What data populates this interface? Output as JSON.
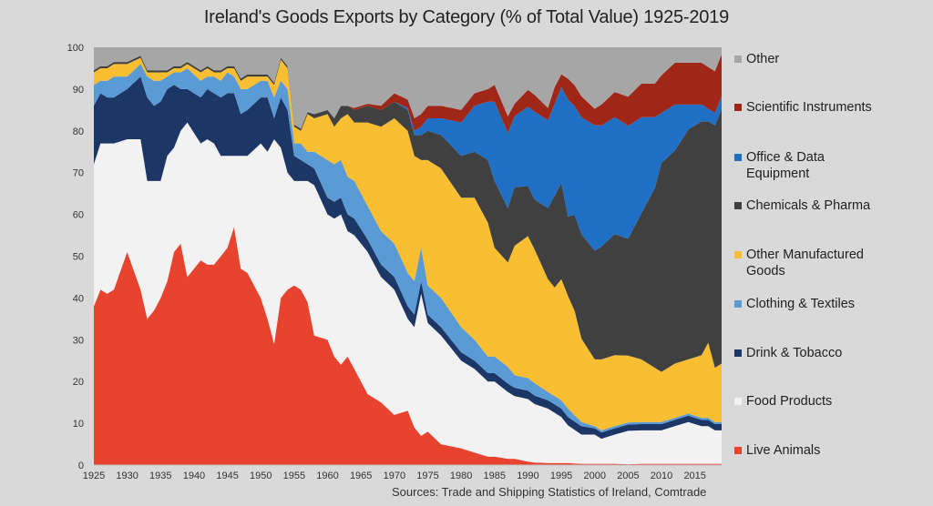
{
  "chart_data": {
    "type": "area",
    "stacked": true,
    "title": "Ireland's Goods Exports by Category (% of Total Value) 1925-2019",
    "xlabel": "",
    "ylabel": "",
    "ylim": [
      0,
      100
    ],
    "xlim": [
      1925,
      2019
    ],
    "grid": false,
    "legend_position": "right",
    "yticks": [
      "0",
      "10",
      "20",
      "30",
      "40",
      "50",
      "60",
      "70",
      "80",
      "90",
      "100"
    ],
    "xticks": [
      "1925",
      "1930",
      "1935",
      "1940",
      "1945",
      "1950",
      "1955",
      "1960",
      "1965",
      "1970",
      "1975",
      "1980",
      "1985",
      "1990",
      "1995",
      "2000",
      "2005",
      "2010",
      "2015"
    ],
    "source": "Sources: Trade and Shipping Statistics of Ireland, Comtrade",
    "x": [
      1925,
      1926,
      1927,
      1928,
      1930,
      1932,
      1933,
      1934,
      1935,
      1936,
      1937,
      1938,
      1939,
      1941,
      1942,
      1943,
      1944,
      1945,
      1946,
      1947,
      1948,
      1950,
      1951,
      1952,
      1953,
      1954,
      1955,
      1956,
      1957,
      1958,
      1960,
      1961,
      1962,
      1963,
      1964,
      1966,
      1968,
      1970,
      1972,
      1973,
      1974,
      1975,
      1977,
      1980,
      1982,
      1984,
      1985,
      1987,
      1988,
      1990,
      1991,
      1993,
      1994,
      1995,
      1996,
      1997,
      1998,
      2000,
      2001,
      2003,
      2005,
      2007,
      2009,
      2010,
      2012,
      2014,
      2016,
      2017,
      2018,
      2019
    ],
    "series": [
      {
        "name": "Live Animals",
        "color": "#e8432f",
        "values": [
          38,
          42,
          41,
          42,
          51,
          42,
          35,
          37,
          40,
          44,
          51,
          53,
          45,
          49,
          48,
          48,
          50,
          52,
          57,
          47,
          46,
          40,
          35,
          29,
          40,
          42,
          43,
          42,
          39,
          31,
          30,
          26,
          24,
          26,
          23,
          17,
          15,
          12,
          13,
          9,
          7,
          8,
          5,
          4,
          3,
          2,
          2,
          1.5,
          1.5,
          0.8,
          0.6,
          0.5,
          0.5,
          0.5,
          0.5,
          0.4,
          0.3,
          0.3,
          0.3,
          0.3,
          0.2,
          0.3,
          0.3,
          0.3,
          0.3,
          0.3,
          0.3,
          0.3,
          0.3,
          0.3
        ]
      },
      {
        "name": "Food Products",
        "color": "#f2f2f2",
        "values": [
          34,
          35,
          36,
          35,
          27,
          36,
          33,
          31,
          28,
          30,
          25,
          27,
          37,
          28,
          30,
          29,
          24,
          22,
          17,
          27,
          28,
          37,
          40,
          49,
          36,
          28,
          25,
          26,
          29,
          36,
          30,
          33,
          36,
          30,
          32,
          34,
          30,
          30,
          22,
          24,
          34,
          26,
          26,
          21,
          20,
          18,
          18,
          16,
          15,
          15,
          14,
          13,
          12,
          11,
          9,
          8,
          7,
          7,
          6,
          7,
          8,
          8,
          8,
          8,
          9,
          10,
          9,
          9,
          8,
          8
        ]
      },
      {
        "name": "Drink & Tobacco",
        "color": "#1c3766",
        "values": [
          14,
          12,
          11,
          11,
          12,
          15,
          20,
          18,
          19,
          16,
          15,
          10,
          8,
          11,
          12,
          12,
          14,
          15,
          15,
          10,
          11,
          11,
          13,
          5,
          12,
          15,
          6,
          5,
          4,
          4,
          4,
          4,
          4,
          4,
          4,
          3,
          3,
          3,
          3,
          3,
          3,
          2,
          2,
          2,
          2,
          2,
          2,
          2,
          2,
          2,
          2,
          2,
          2,
          2,
          2,
          2,
          2,
          1.5,
          1.5,
          1.5,
          1.5,
          1.5,
          1.5,
          1.5,
          1.5,
          1.5,
          1.5,
          1.5,
          1.5,
          1.5
        ]
      },
      {
        "name": "Clothing & Textiles",
        "color": "#5b9bd5",
        "values": [
          5,
          3,
          4,
          5,
          3,
          3,
          5,
          6,
          5,
          3,
          3,
          4,
          5,
          4,
          3,
          4,
          4,
          5,
          4,
          6,
          5,
          4,
          4,
          5,
          4,
          5,
          3,
          4,
          3,
          4,
          9,
          9,
          9,
          9,
          9,
          8,
          8,
          8,
          8,
          8,
          8,
          7,
          7,
          6,
          5,
          4,
          4,
          4,
          3,
          3,
          3,
          2,
          2,
          2,
          2,
          1.5,
          1,
          0.5,
          0.5,
          0.5,
          0.5,
          0.5,
          0.5,
          0.5,
          0.5,
          0.5,
          0.5,
          0.5,
          0.5,
          0.5
        ]
      },
      {
        "name": "Other Manufactured Goods",
        "color": "#f9be32",
        "values": [
          3,
          3,
          3,
          3,
          3,
          1.5,
          1,
          2,
          2,
          1,
          1,
          1,
          1,
          2,
          2,
          1,
          2,
          1,
          2,
          2,
          3,
          1,
          1,
          3,
          5,
          5,
          4,
          3,
          9,
          8,
          11,
          9,
          10,
          15,
          14,
          20,
          25,
          30,
          34,
          30,
          21,
          30,
          31,
          31,
          34,
          32,
          26,
          25,
          31,
          34,
          32,
          27,
          26,
          29,
          27,
          25,
          20,
          16,
          17,
          17,
          16,
          15,
          13,
          12,
          13,
          13,
          15,
          18,
          13,
          14
        ]
      },
      {
        "name": "Chemicals & Pharma",
        "color": "#404040",
        "values": [
          0.5,
          0.5,
          0.5,
          0.5,
          0.5,
          0.5,
          0.5,
          0.5,
          0.5,
          0.5,
          0.5,
          0.5,
          0.5,
          0.5,
          0.5,
          0.5,
          0.5,
          0.5,
          0.5,
          0.5,
          0.5,
          0.5,
          0.5,
          0.5,
          0.5,
          0.5,
          0.5,
          0.5,
          0.5,
          1,
          1,
          2,
          3,
          2,
          3,
          4,
          4,
          4,
          5,
          5,
          6,
          7,
          8,
          10,
          11,
          15,
          16,
          13,
          14,
          12,
          12,
          17,
          22,
          23,
          19,
          23,
          25,
          26,
          27,
          29,
          28,
          35,
          43,
          50,
          51,
          55,
          56,
          53,
          58,
          61
        ]
      },
      {
        "name": "Office & Data Equipment",
        "color": "#1f6fc5",
        "values": [
          0,
          0,
          0,
          0,
          0,
          0,
          0,
          0,
          0,
          0,
          0,
          0,
          0,
          0,
          0,
          0,
          0,
          0,
          0,
          0,
          0,
          0,
          0,
          0,
          0,
          0,
          0,
          0,
          0,
          0,
          0,
          0,
          0,
          0,
          0,
          0,
          0,
          0,
          0.5,
          1,
          2,
          3,
          4,
          8,
          11,
          14,
          19,
          18,
          17,
          19,
          21,
          21,
          22,
          23,
          28,
          26,
          28,
          30,
          29,
          28,
          27,
          23,
          17,
          12,
          11,
          6,
          4,
          3,
          3,
          3
        ]
      },
      {
        "name": "Scientific Instruments",
        "color": "#a02618",
        "values": [
          0,
          0,
          0,
          0,
          0,
          0,
          0,
          0,
          0,
          0,
          0,
          0,
          0,
          0,
          0,
          0,
          0,
          0,
          0,
          0,
          0,
          0,
          0,
          0,
          0,
          0,
          0,
          0,
          0,
          0,
          0,
          0,
          0,
          0,
          0.5,
          0.5,
          1,
          2,
          2,
          3,
          3,
          3,
          3,
          3,
          3,
          3,
          4,
          4,
          3,
          4,
          4,
          3,
          4,
          3,
          5,
          5,
          5,
          4,
          5,
          6,
          7,
          8,
          8,
          9,
          10,
          10,
          10,
          10,
          10,
          10
        ]
      },
      {
        "name": "Other",
        "color": "#a6a6a6",
        "values": [
          5.5,
          4.5,
          4.5,
          3.5,
          3.5,
          2,
          4.5,
          3.5,
          3.5,
          5.5,
          4.5,
          4.5,
          3.5,
          4.5,
          2.5,
          4.5,
          5.5,
          4.5,
          4.5,
          5.5,
          6.5,
          6.5,
          6.5,
          8.5,
          2.5,
          4.5,
          18.5,
          19.5,
          15.5,
          16,
          15,
          16,
          13,
          14,
          14.5,
          13.5,
          14,
          11,
          12.5,
          17,
          16,
          14,
          14,
          15,
          11,
          10,
          9,
          16.5,
          13.5,
          10.2,
          11.4,
          14.5,
          9.5,
          6.5,
          7.5,
          8.6,
          11.7,
          13.7,
          13.2,
          9.2,
          18.3,
          8.7,
          8.7,
          6.7,
          3.2,
          3.2,
          3.2,
          4.2,
          5.2,
          1.2
        ]
      }
    ]
  }
}
